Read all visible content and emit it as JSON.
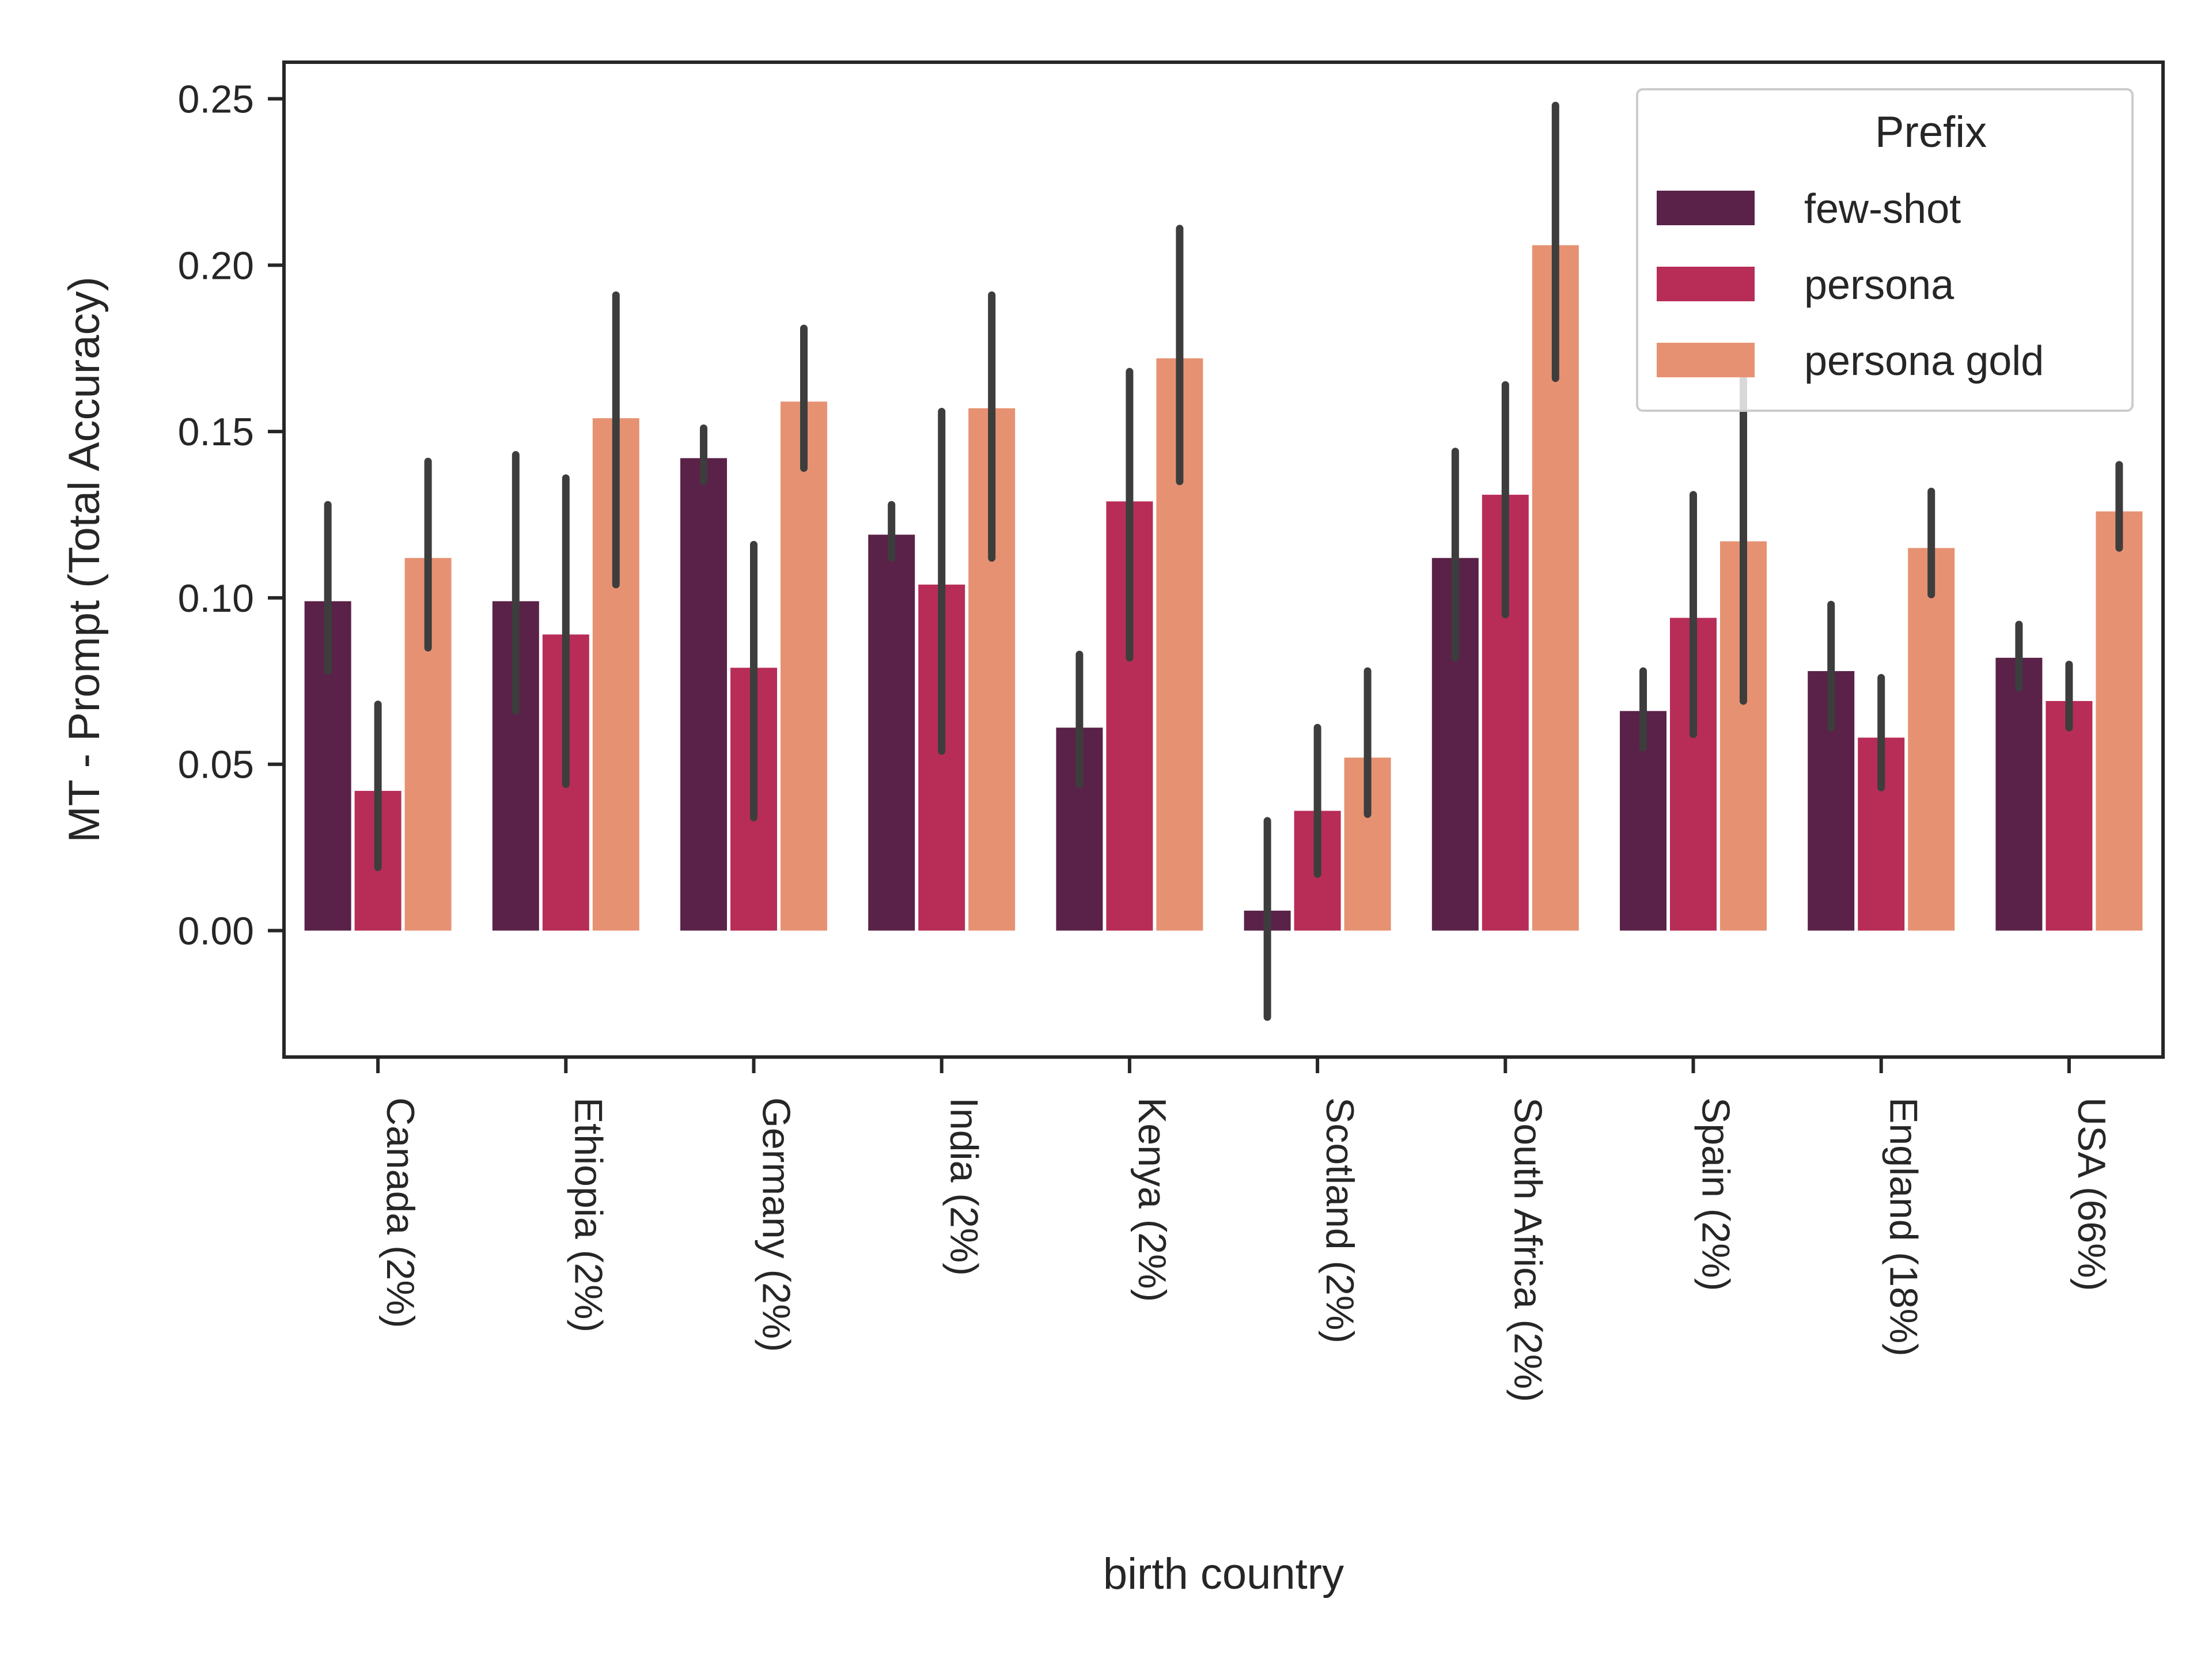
{
  "chart_data": {
    "type": "bar",
    "xlabel": "birth country",
    "ylabel": "MT - Prompt (Total Accuracy)",
    "ylim": [
      -0.038,
      0.261
    ],
    "yticks": [
      0.0,
      0.05,
      0.1,
      0.15,
      0.2,
      0.25
    ],
    "ytick_labels": [
      "0.00",
      "0.05",
      "0.10",
      "0.15",
      "0.20",
      "0.25"
    ],
    "grid": false,
    "categories": [
      "Canada (2%)",
      "Ethiopia (2%)",
      "Germany (2%)",
      "India (2%)",
      "Kenya (2%)",
      "Scotland (2%)",
      "South Africa (2%)",
      "Spain (2%)",
      "England (18%)",
      "USA (66%)"
    ],
    "series": [
      {
        "name": "few-shot",
        "color": "#5a2248",
        "values": [
          0.099,
          0.099,
          0.142,
          0.119,
          0.061,
          0.006,
          0.112,
          0.066,
          0.078,
          0.082
        ],
        "ci_low": [
          0.078,
          0.066,
          0.135,
          0.112,
          0.044,
          -0.026,
          0.082,
          0.055,
          0.061,
          0.073
        ],
        "ci_high": [
          0.128,
          0.143,
          0.151,
          0.128,
          0.083,
          0.033,
          0.144,
          0.078,
          0.098,
          0.092
        ]
      },
      {
        "name": "persona",
        "color": "#b72d57",
        "values": [
          0.042,
          0.089,
          0.079,
          0.104,
          0.129,
          0.036,
          0.131,
          0.094,
          0.058,
          0.069
        ],
        "ci_low": [
          0.019,
          0.044,
          0.034,
          0.054,
          0.082,
          0.017,
          0.095,
          0.059,
          0.043,
          0.061
        ],
        "ci_high": [
          0.068,
          0.136,
          0.116,
          0.156,
          0.168,
          0.061,
          0.164,
          0.131,
          0.076,
          0.08
        ]
      },
      {
        "name": "persona gold",
        "color": "#e69272",
        "values": [
          0.112,
          0.154,
          0.159,
          0.157,
          0.172,
          0.052,
          0.206,
          0.117,
          0.115,
          0.126
        ],
        "ci_low": [
          0.085,
          0.104,
          0.139,
          0.112,
          0.135,
          0.035,
          0.166,
          0.069,
          0.101,
          0.115
        ],
        "ci_high": [
          0.141,
          0.191,
          0.181,
          0.191,
          0.211,
          0.078,
          0.248,
          0.166,
          0.132,
          0.14
        ]
      }
    ],
    "legend": {
      "title": "Prefix",
      "placement": "top-right"
    }
  }
}
